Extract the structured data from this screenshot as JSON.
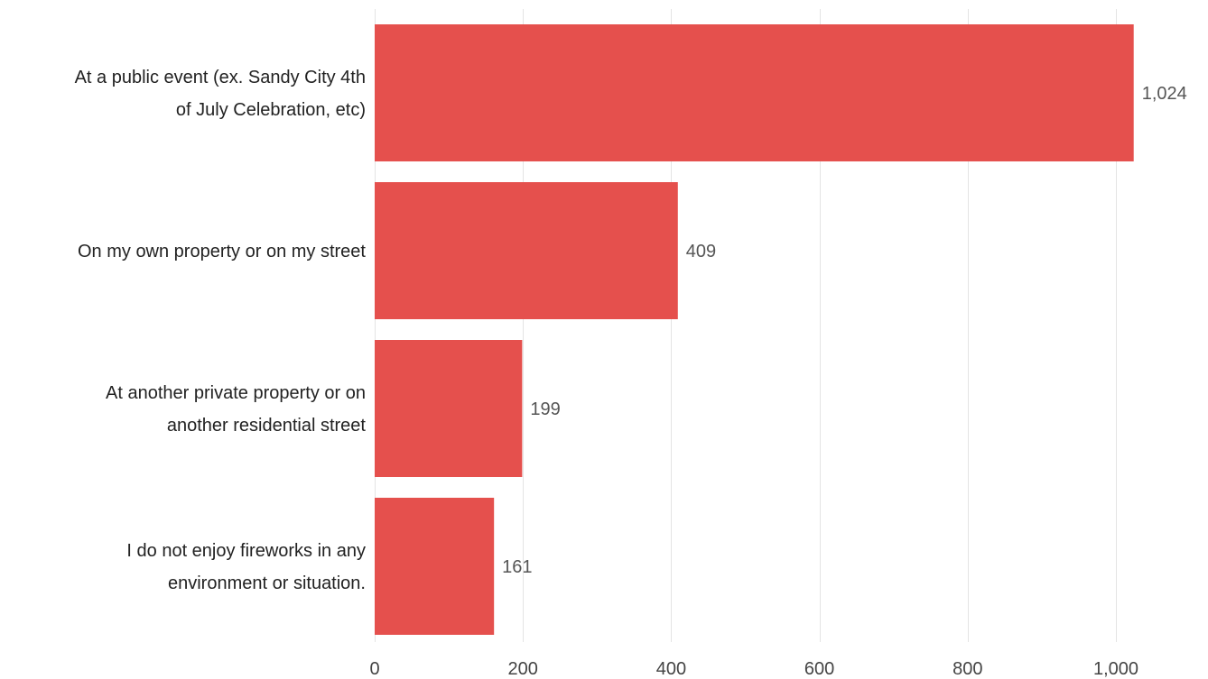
{
  "chart_data": {
    "type": "bar",
    "orientation": "horizontal",
    "categories": [
      [
        "At a public event (ex. Sandy City 4th",
        "of July Celebration, etc)"
      ],
      [
        "On my own property or on my street"
      ],
      [
        "At another private property or on",
        "another residential street"
      ],
      [
        "I do not enjoy fireworks in any",
        "environment or situation."
      ]
    ],
    "values": [
      1024,
      409,
      199,
      161
    ],
    "value_labels": [
      "1,024",
      "409",
      "199",
      "161"
    ],
    "title": "",
    "xlabel": "",
    "ylabel": "",
    "xlim": [
      0,
      1000
    ],
    "x_ticks": [
      0,
      200,
      400,
      600,
      800,
      1000
    ],
    "x_tick_labels": [
      "0",
      "200",
      "400",
      "600",
      "800",
      "1,000"
    ],
    "grid": true,
    "legend": "none",
    "bar_color": "#e5504d"
  }
}
